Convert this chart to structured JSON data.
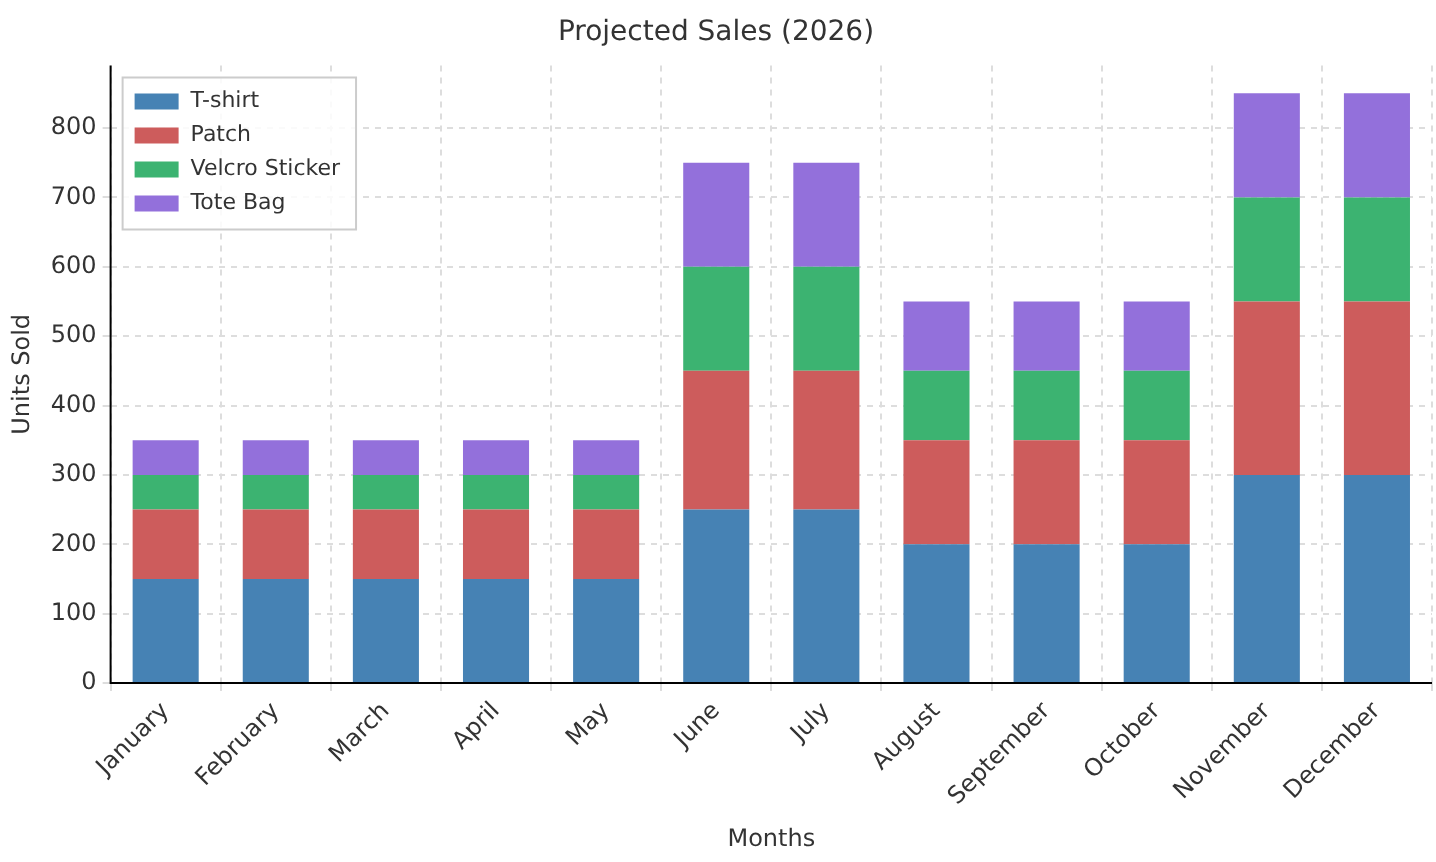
{
  "chart_data": {
    "type": "bar",
    "title": "Projected Sales (2026)",
    "xlabel": "Months",
    "ylabel": "Units Sold",
    "categories": [
      "January",
      "February",
      "March",
      "April",
      "May",
      "June",
      "July",
      "August",
      "September",
      "October",
      "November",
      "December"
    ],
    "series": [
      {
        "name": "T-shirt",
        "color": "#4682b4",
        "values": [
          150,
          150,
          150,
          150,
          150,
          250,
          250,
          200,
          200,
          200,
          300,
          300
        ]
      },
      {
        "name": "Patch",
        "color": "#cd5c5c",
        "values": [
          100,
          100,
          100,
          100,
          100,
          200,
          200,
          150,
          150,
          150,
          250,
          250
        ]
      },
      {
        "name": "Velcro Sticker",
        "color": "#3cb371",
        "values": [
          50,
          50,
          50,
          50,
          50,
          150,
          150,
          100,
          100,
          100,
          150,
          150
        ]
      },
      {
        "name": "Tote Bag",
        "color": "#9370db",
        "values": [
          50,
          50,
          50,
          50,
          50,
          150,
          150,
          100,
          100,
          100,
          150,
          150
        ]
      }
    ],
    "stacked": true,
    "ylim": [
      0,
      890
    ],
    "yticks": [
      0,
      100,
      200,
      300,
      400,
      500,
      600,
      700,
      800
    ],
    "grid": true,
    "legend": "top left"
  }
}
